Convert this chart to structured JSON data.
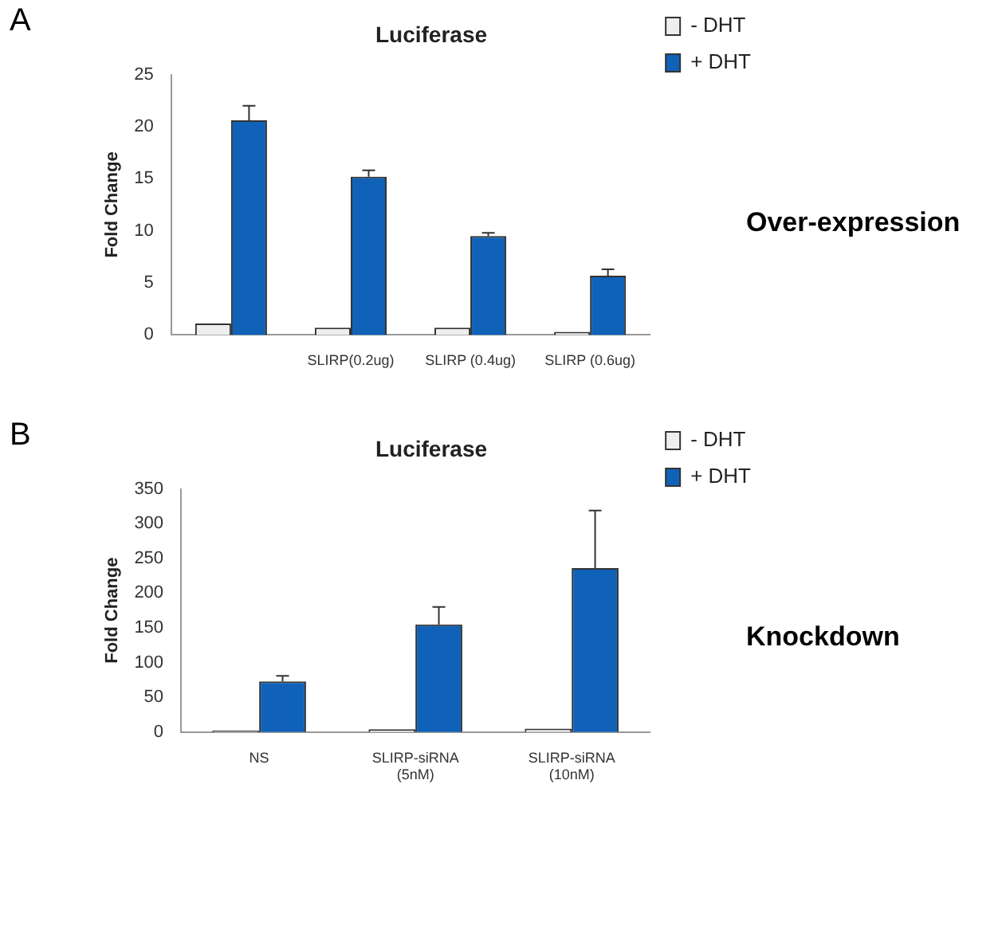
{
  "chart_data": [
    {
      "type": "bar",
      "title": "Luciferase",
      "ylabel": "Fold Change",
      "categories": [
        null,
        "SLIRP(0.2ug)",
        "SLIRP (0.4ug)",
        "SLIRP (0.6ug)"
      ],
      "series": [
        {
          "name": "- DHT",
          "color": "#eeeeee",
          "values": [
            1.1,
            0.7,
            0.7,
            0.3
          ]
        },
        {
          "name": "+ DHT",
          "color": "#0f62b8",
          "values": [
            20.6,
            15.2,
            9.5,
            5.7
          ],
          "errors": [
            1.4,
            0.6,
            0.3,
            0.6
          ]
        }
      ],
      "ylim": [
        0,
        25
      ],
      "yticks": [
        0,
        5,
        10,
        15,
        20,
        25
      ],
      "grid": false,
      "legend": "top right",
      "annotations": [
        "A",
        "Over-expression"
      ]
    },
    {
      "type": "bar",
      "title": "Luciferase",
      "ylabel": "Fold Change",
      "categories": [
        "NS",
        "SLIRP-siRNA\n(5nM)",
        "SLIRP-siRNA\n(10nM)"
      ],
      "series": [
        {
          "name": "- DHT",
          "color": "#eeeeee",
          "values": [
            2,
            4,
            5
          ]
        },
        {
          "name": "+ DHT",
          "color": "#0f62b8",
          "values": [
            73,
            155,
            236
          ],
          "errors": [
            8,
            25,
            83
          ]
        }
      ],
      "ylim": [
        0,
        350
      ],
      "yticks": [
        0,
        50,
        100,
        150,
        200,
        250,
        300,
        350
      ],
      "grid": false,
      "legend": "top right",
      "annotations": [
        "B",
        "Knockdown"
      ]
    }
  ]
}
